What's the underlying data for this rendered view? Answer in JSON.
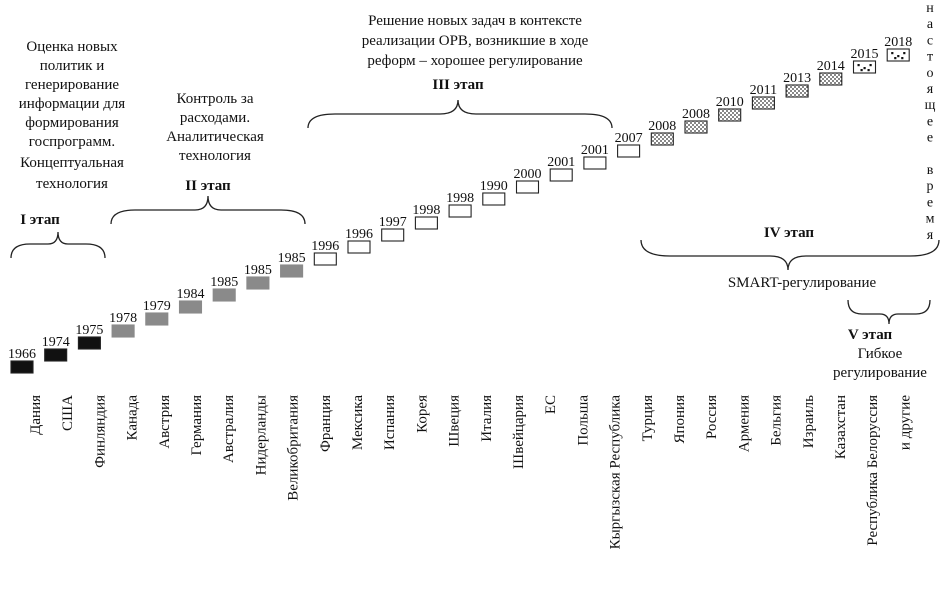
{
  "years": [
    "1966",
    "1974",
    "1975",
    "1978",
    "1979",
    "1984",
    "1985",
    "1985",
    "1985",
    "1996",
    "1996",
    "1997",
    "1998",
    "1998",
    "1990",
    "2000",
    "2001",
    "2001",
    "2007",
    "2008",
    "2008",
    "2010",
    "2011",
    "2013",
    "2014",
    "2015",
    "2018"
  ],
  "countries": [
    "Дания",
    "США",
    "Финляндия",
    "Канада",
    "Австрия",
    "Германия",
    "Австралия",
    "Нидерланды",
    "Великобритания",
    "Франция",
    "Мексика",
    "Испания",
    "Корея",
    "Швеция",
    "Италия",
    "Швейцария",
    "ЕС",
    "Польша",
    "Кыргызская Республика",
    "Турция",
    "Япония",
    "Россия",
    "Армения",
    "Бельгия",
    "Израиль",
    "Казахстан",
    "Республика Белоруссия",
    "и другие"
  ],
  "marker_styles": [
    "black",
    "black",
    "black",
    "gray",
    "gray",
    "gray",
    "gray",
    "gray",
    "gray",
    "white",
    "white",
    "white",
    "white",
    "white",
    "white",
    "white",
    "white",
    "white",
    "white",
    "dotted",
    "dotted",
    "dotted",
    "dotted",
    "dotted",
    "dotted",
    "special",
    "special"
  ],
  "stages": {
    "s1": {
      "label": "I этап",
      "desc": [
        "Оценка новых",
        "политик и",
        "генерирование",
        "информации для",
        "формирования",
        "госпрограмм.",
        "Концептуальная",
        "технология"
      ]
    },
    "s2": {
      "label": "II этап",
      "desc": [
        "Контроль за",
        "расходами.",
        "Аналитическая",
        "технология"
      ]
    },
    "s3": {
      "label": "III этап",
      "desc": [
        "Решение новых задач в контексте",
        "реализации ОРВ, возникшие в ходе",
        "реформ – хорошее регулирование"
      ]
    },
    "s4": {
      "label": "IV этап",
      "desc": [
        "SMART-регулирование"
      ]
    },
    "s5": {
      "label": "V этап",
      "desc": [
        "Гибкое",
        "регулирование"
      ]
    }
  },
  "present_time": [
    "н",
    "а",
    "с",
    "т",
    "о",
    "я",
    "щ",
    "е",
    "е",
    "",
    "в",
    "р",
    "е",
    "м",
    "я"
  ],
  "colors": {
    "black": "#111111",
    "gray": "#8a8a8a",
    "white": "#ffffff",
    "stroke": "#222222"
  }
}
